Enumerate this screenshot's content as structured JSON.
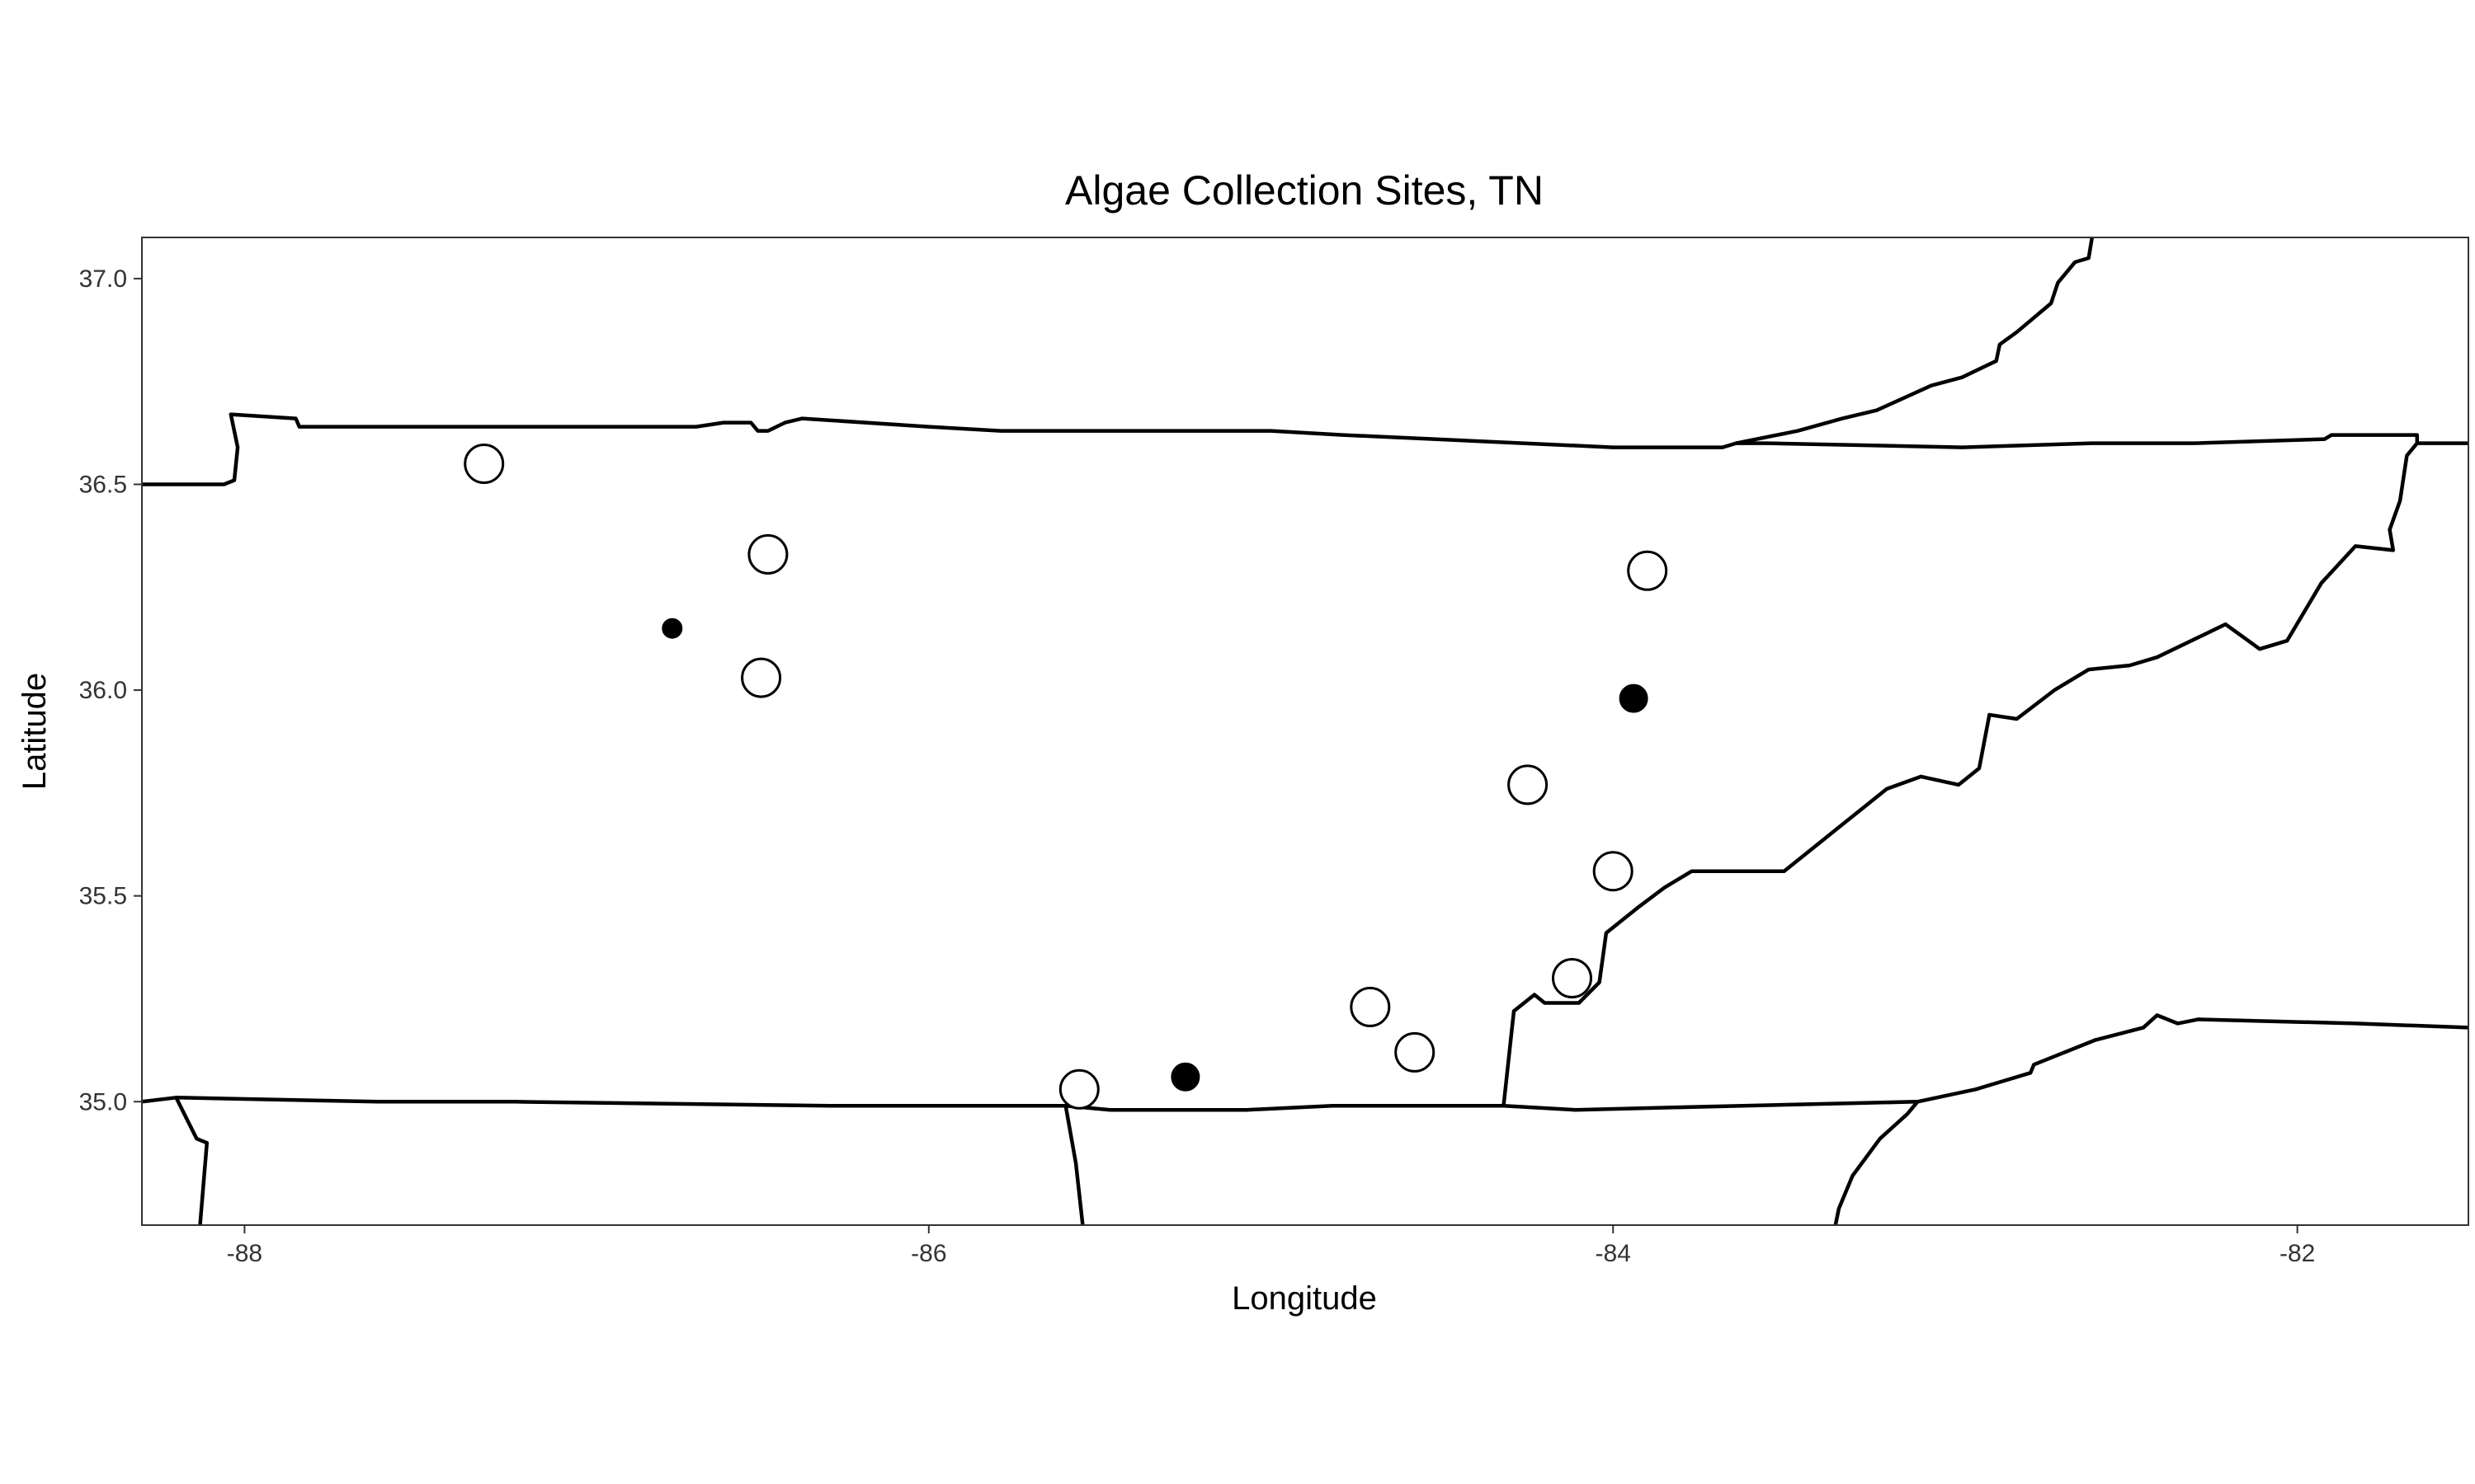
{
  "chart_data": {
    "type": "scatter",
    "title": "Algae Collection Sites, TN",
    "xlabel": "Longitude",
    "ylabel": "Latitude",
    "xlim": [
      -88.3,
      -81.5
    ],
    "ylim": [
      34.7,
      37.1
    ],
    "x_ticks": [
      {
        "value": -88,
        "label": "-88"
      },
      {
        "value": -86,
        "label": "-86"
      },
      {
        "value": -84,
        "label": "-84"
      },
      {
        "value": -82,
        "label": "-82"
      }
    ],
    "y_ticks": [
      {
        "value": 35.0,
        "label": "35.0"
      },
      {
        "value": 35.5,
        "label": "35.5"
      },
      {
        "value": 36.0,
        "label": "36.0"
      },
      {
        "value": 36.5,
        "label": "36.5"
      },
      {
        "value": 37.0,
        "label": "37.0"
      }
    ],
    "grid": false,
    "legend": "none",
    "colors": {
      "filled": "#000000",
      "open_fill": "#ffffff",
      "outline": "#000000"
    },
    "points": [
      {
        "lon": -87.3,
        "lat": 36.55,
        "style": "open",
        "size": "large"
      },
      {
        "lon": -86.75,
        "lat": 36.15,
        "style": "filled",
        "size": "small"
      },
      {
        "lon": -86.47,
        "lat": 36.33,
        "style": "open",
        "size": "large"
      },
      {
        "lon": -86.49,
        "lat": 36.03,
        "style": "open",
        "size": "large"
      },
      {
        "lon": -85.56,
        "lat": 35.03,
        "style": "open",
        "size": "large"
      },
      {
        "lon": -85.25,
        "lat": 35.06,
        "style": "filled",
        "size": "medium"
      },
      {
        "lon": -84.71,
        "lat": 35.23,
        "style": "open",
        "size": "large"
      },
      {
        "lon": -84.58,
        "lat": 35.12,
        "style": "open",
        "size": "large"
      },
      {
        "lon": -84.25,
        "lat": 35.77,
        "style": "open",
        "size": "large"
      },
      {
        "lon": -84.12,
        "lat": 35.3,
        "style": "open",
        "size": "large"
      },
      {
        "lon": -84.0,
        "lat": 35.56,
        "style": "open",
        "size": "large"
      },
      {
        "lon": -83.9,
        "lat": 36.29,
        "style": "open",
        "size": "large"
      },
      {
        "lon": -83.94,
        "lat": 35.98,
        "style": "filled",
        "size": "medium"
      }
    ],
    "boundaries": [
      [
        [
          -88.3,
          36.5
        ],
        [
          -88.06,
          36.5
        ],
        [
          -88.03,
          36.51
        ],
        [
          -88.02,
          36.59
        ],
        [
          -88.04,
          36.67
        ],
        [
          -87.85,
          36.66
        ],
        [
          -87.84,
          36.64
        ],
        [
          -87.64,
          36.64
        ],
        [
          -86.68,
          36.64
        ],
        [
          -86.6,
          36.65
        ],
        [
          -86.52,
          36.65
        ],
        [
          -86.5,
          36.63
        ],
        [
          -86.47,
          36.63
        ],
        [
          -86.42,
          36.65
        ],
        [
          -86.37,
          36.66
        ],
        [
          -86.0,
          36.64
        ],
        [
          -85.79,
          36.63
        ],
        [
          -85.0,
          36.63
        ],
        [
          -84.79,
          36.62
        ],
        [
          -84.0,
          36.59
        ],
        [
          -83.68,
          36.59
        ],
        [
          -83.64,
          36.6
        ],
        [
          -83.55,
          36.6
        ],
        [
          -82.98,
          36.59
        ],
        [
          -82.6,
          36.6
        ],
        [
          -82.3,
          36.6
        ],
        [
          -81.92,
          36.61
        ],
        [
          -81.9,
          36.62
        ],
        [
          -81.65,
          36.62
        ],
        [
          -81.65,
          36.6
        ],
        [
          -81.5,
          36.6
        ]
      ],
      [
        [
          -81.5,
          35.18
        ],
        [
          -81.83,
          35.19
        ],
        [
          -82.29,
          35.2
        ],
        [
          -82.35,
          35.19
        ],
        [
          -82.41,
          35.21
        ],
        [
          -82.45,
          35.18
        ],
        [
          -82.59,
          35.15
        ],
        [
          -82.77,
          35.09
        ],
        [
          -82.78,
          35.07
        ],
        [
          -82.94,
          35.03
        ],
        [
          -83.11,
          35.0
        ],
        [
          -83.62,
          34.99
        ],
        [
          -84.11,
          34.98
        ],
        [
          -84.32,
          34.99
        ],
        [
          -84.62,
          34.99
        ],
        [
          -84.82,
          34.99
        ],
        [
          -85.07,
          34.98
        ],
        [
          -85.47,
          34.98
        ],
        [
          -85.6,
          34.99
        ],
        [
          -86.29,
          34.99
        ],
        [
          -87.21,
          35.0
        ],
        [
          -87.61,
          35.0
        ],
        [
          -88.2,
          35.01
        ],
        [
          -88.3,
          35.0
        ]
      ],
      [
        [
          -84.32,
          34.99
        ],
        [
          -84.29,
          35.22
        ],
        [
          -84.23,
          35.26
        ],
        [
          -84.2,
          35.24
        ],
        [
          -84.1,
          35.24
        ],
        [
          -84.04,
          35.29
        ],
        [
          -84.03,
          35.35
        ],
        [
          -84.02,
          35.41
        ],
        [
          -83.93,
          35.47
        ],
        [
          -83.85,
          35.52
        ],
        [
          -83.77,
          35.56
        ],
        [
          -83.5,
          35.56
        ],
        [
          -83.35,
          35.66
        ],
        [
          -83.26,
          35.72
        ],
        [
          -83.2,
          35.76
        ],
        [
          -83.1,
          35.79
        ],
        [
          -82.99,
          35.77
        ],
        [
          -82.93,
          35.81
        ],
        [
          -82.9,
          35.94
        ],
        [
          -82.82,
          35.93
        ],
        [
          -82.71,
          36.0
        ],
        [
          -82.61,
          36.05
        ],
        [
          -82.49,
          36.06
        ],
        [
          -82.41,
          36.08
        ],
        [
          -82.31,
          36.12
        ],
        [
          -82.21,
          36.16
        ],
        [
          -82.11,
          36.1
        ],
        [
          -82.03,
          36.12
        ],
        [
          -81.93,
          36.26
        ],
        [
          -81.83,
          36.35
        ],
        [
          -81.72,
          36.34
        ],
        [
          -81.73,
          36.39
        ],
        [
          -81.7,
          36.46
        ],
        [
          -81.68,
          36.57
        ],
        [
          -81.65,
          36.6
        ]
      ],
      [
        [
          -82.6,
          37.1
        ],
        [
          -82.61,
          37.05
        ],
        [
          -82.65,
          37.04
        ],
        [
          -82.7,
          36.99
        ],
        [
          -82.72,
          36.94
        ],
        [
          -82.82,
          36.87
        ],
        [
          -82.87,
          36.84
        ],
        [
          -82.88,
          36.8
        ],
        [
          -82.98,
          36.76
        ],
        [
          -83.07,
          36.74
        ],
        [
          -83.23,
          36.68
        ],
        [
          -83.33,
          36.66
        ],
        [
          -83.46,
          36.63
        ],
        [
          -83.64,
          36.6
        ]
      ],
      [
        [
          -85.6,
          34.99
        ],
        [
          -85.57,
          34.85
        ],
        [
          -85.55,
          34.7
        ]
      ],
      [
        [
          -88.2,
          35.01
        ],
        [
          -88.17,
          34.96
        ],
        [
          -88.14,
          34.91
        ],
        [
          -88.11,
          34.9
        ],
        [
          -88.13,
          34.7
        ]
      ],
      [
        [
          -83.11,
          35.0
        ],
        [
          -83.14,
          34.97
        ],
        [
          -83.22,
          34.91
        ],
        [
          -83.3,
          34.82
        ],
        [
          -83.34,
          34.74
        ],
        [
          -83.35,
          34.7
        ]
      ]
    ]
  }
}
